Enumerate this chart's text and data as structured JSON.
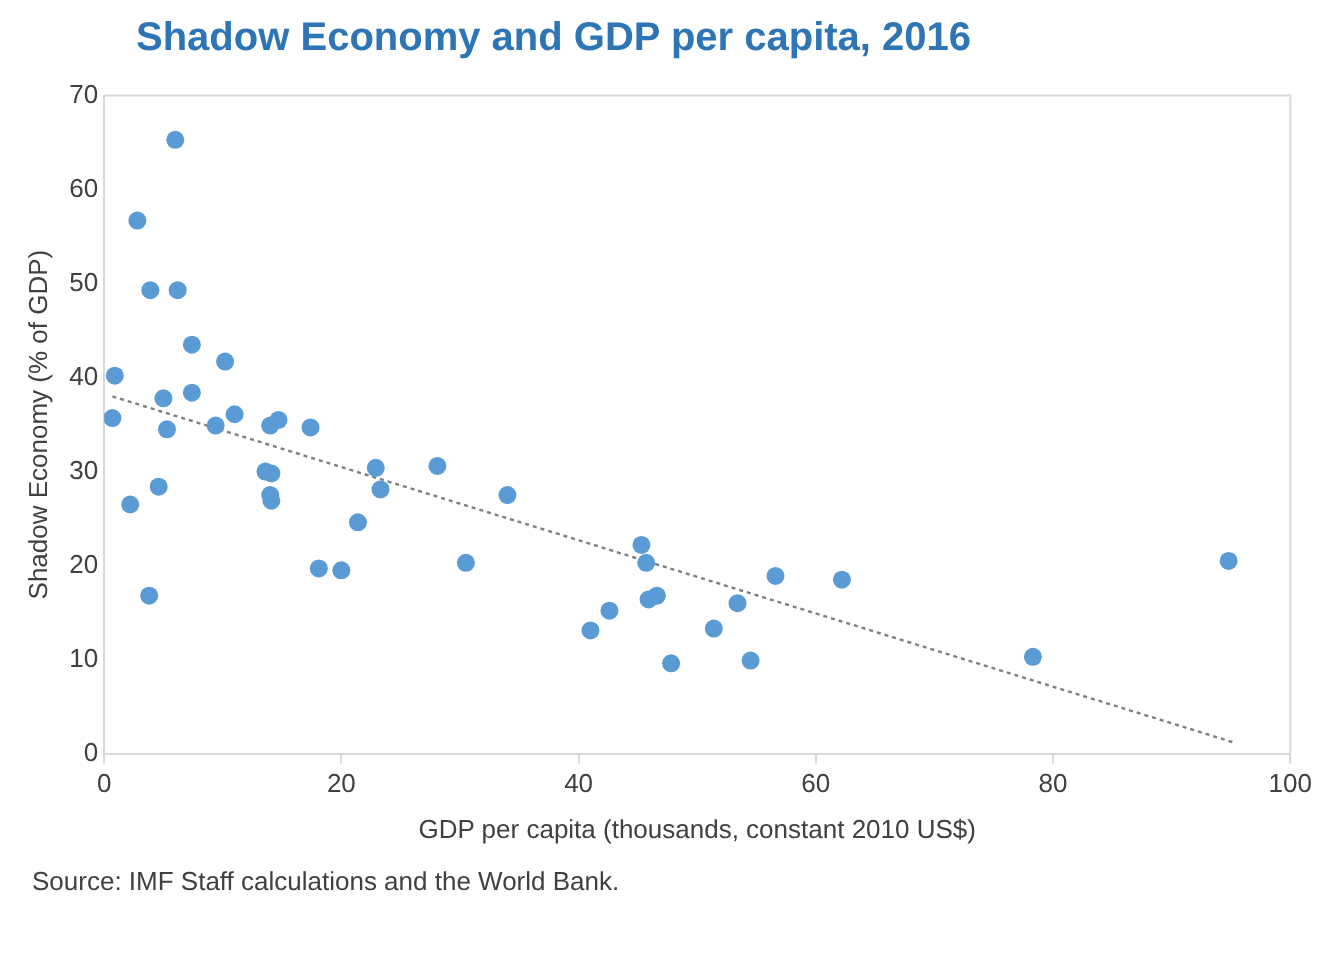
{
  "chart_data": {
    "type": "scatter",
    "title": "Shadow Economy and GDP per capita, 2016",
    "xlabel": "GDP per capita (thousands, constant 2010 US$)",
    "ylabel": "Shadow Economy (% of GDP)",
    "annotations": [
      "Source: IMF Staff calculations and the World Bank."
    ],
    "xlim": [
      0,
      100
    ],
    "xticks": [
      0,
      20,
      40,
      60,
      80,
      100
    ],
    "ylim": [
      0,
      70
    ],
    "yticks": [
      0,
      10,
      20,
      30,
      40,
      50,
      60,
      70
    ],
    "grid": false,
    "legend": false,
    "marker": "circle",
    "series": [
      {
        "type": "scatter",
        "color": "#5b9bd5",
        "x": [
          0.9,
          0.7,
          2.2,
          2.8,
          3.9,
          3.8,
          6.0,
          6.2,
          7.4,
          5.0,
          4.6,
          5.3,
          7.4,
          10.2,
          11.0,
          9.4,
          14.0,
          14.7,
          17.4,
          14.1,
          14.0,
          14.1,
          13.6,
          18.1,
          20.0,
          21.4,
          22.9,
          23.3,
          28.1,
          30.5,
          34.0,
          41.0,
          42.6,
          45.3,
          45.7,
          45.9,
          46.6,
          47.8,
          51.4,
          53.4,
          54.5,
          56.6,
          62.2,
          78.3,
          94.8
        ],
        "values": [
          40.2,
          35.7,
          26.5,
          56.7,
          49.3,
          16.8,
          65.3,
          49.3,
          43.5,
          37.8,
          28.4,
          34.5,
          38.4,
          41.7,
          36.1,
          34.9,
          34.9,
          35.5,
          34.7,
          29.8,
          27.5,
          26.9,
          30.0,
          19.7,
          19.5,
          24.6,
          30.4,
          28.1,
          30.6,
          20.3,
          27.5,
          13.1,
          15.2,
          22.2,
          20.3,
          16.4,
          16.8,
          9.6,
          13.3,
          16.0,
          9.9,
          18.9,
          18.5,
          10.3,
          20.5
        ]
      },
      {
        "type": "line",
        "color": "#7f7f7f",
        "line_style": "dotted",
        "marker": "none",
        "x": [
          0.7,
          95.2
        ],
        "values": [
          38.0,
          1.2
        ]
      }
    ]
  }
}
